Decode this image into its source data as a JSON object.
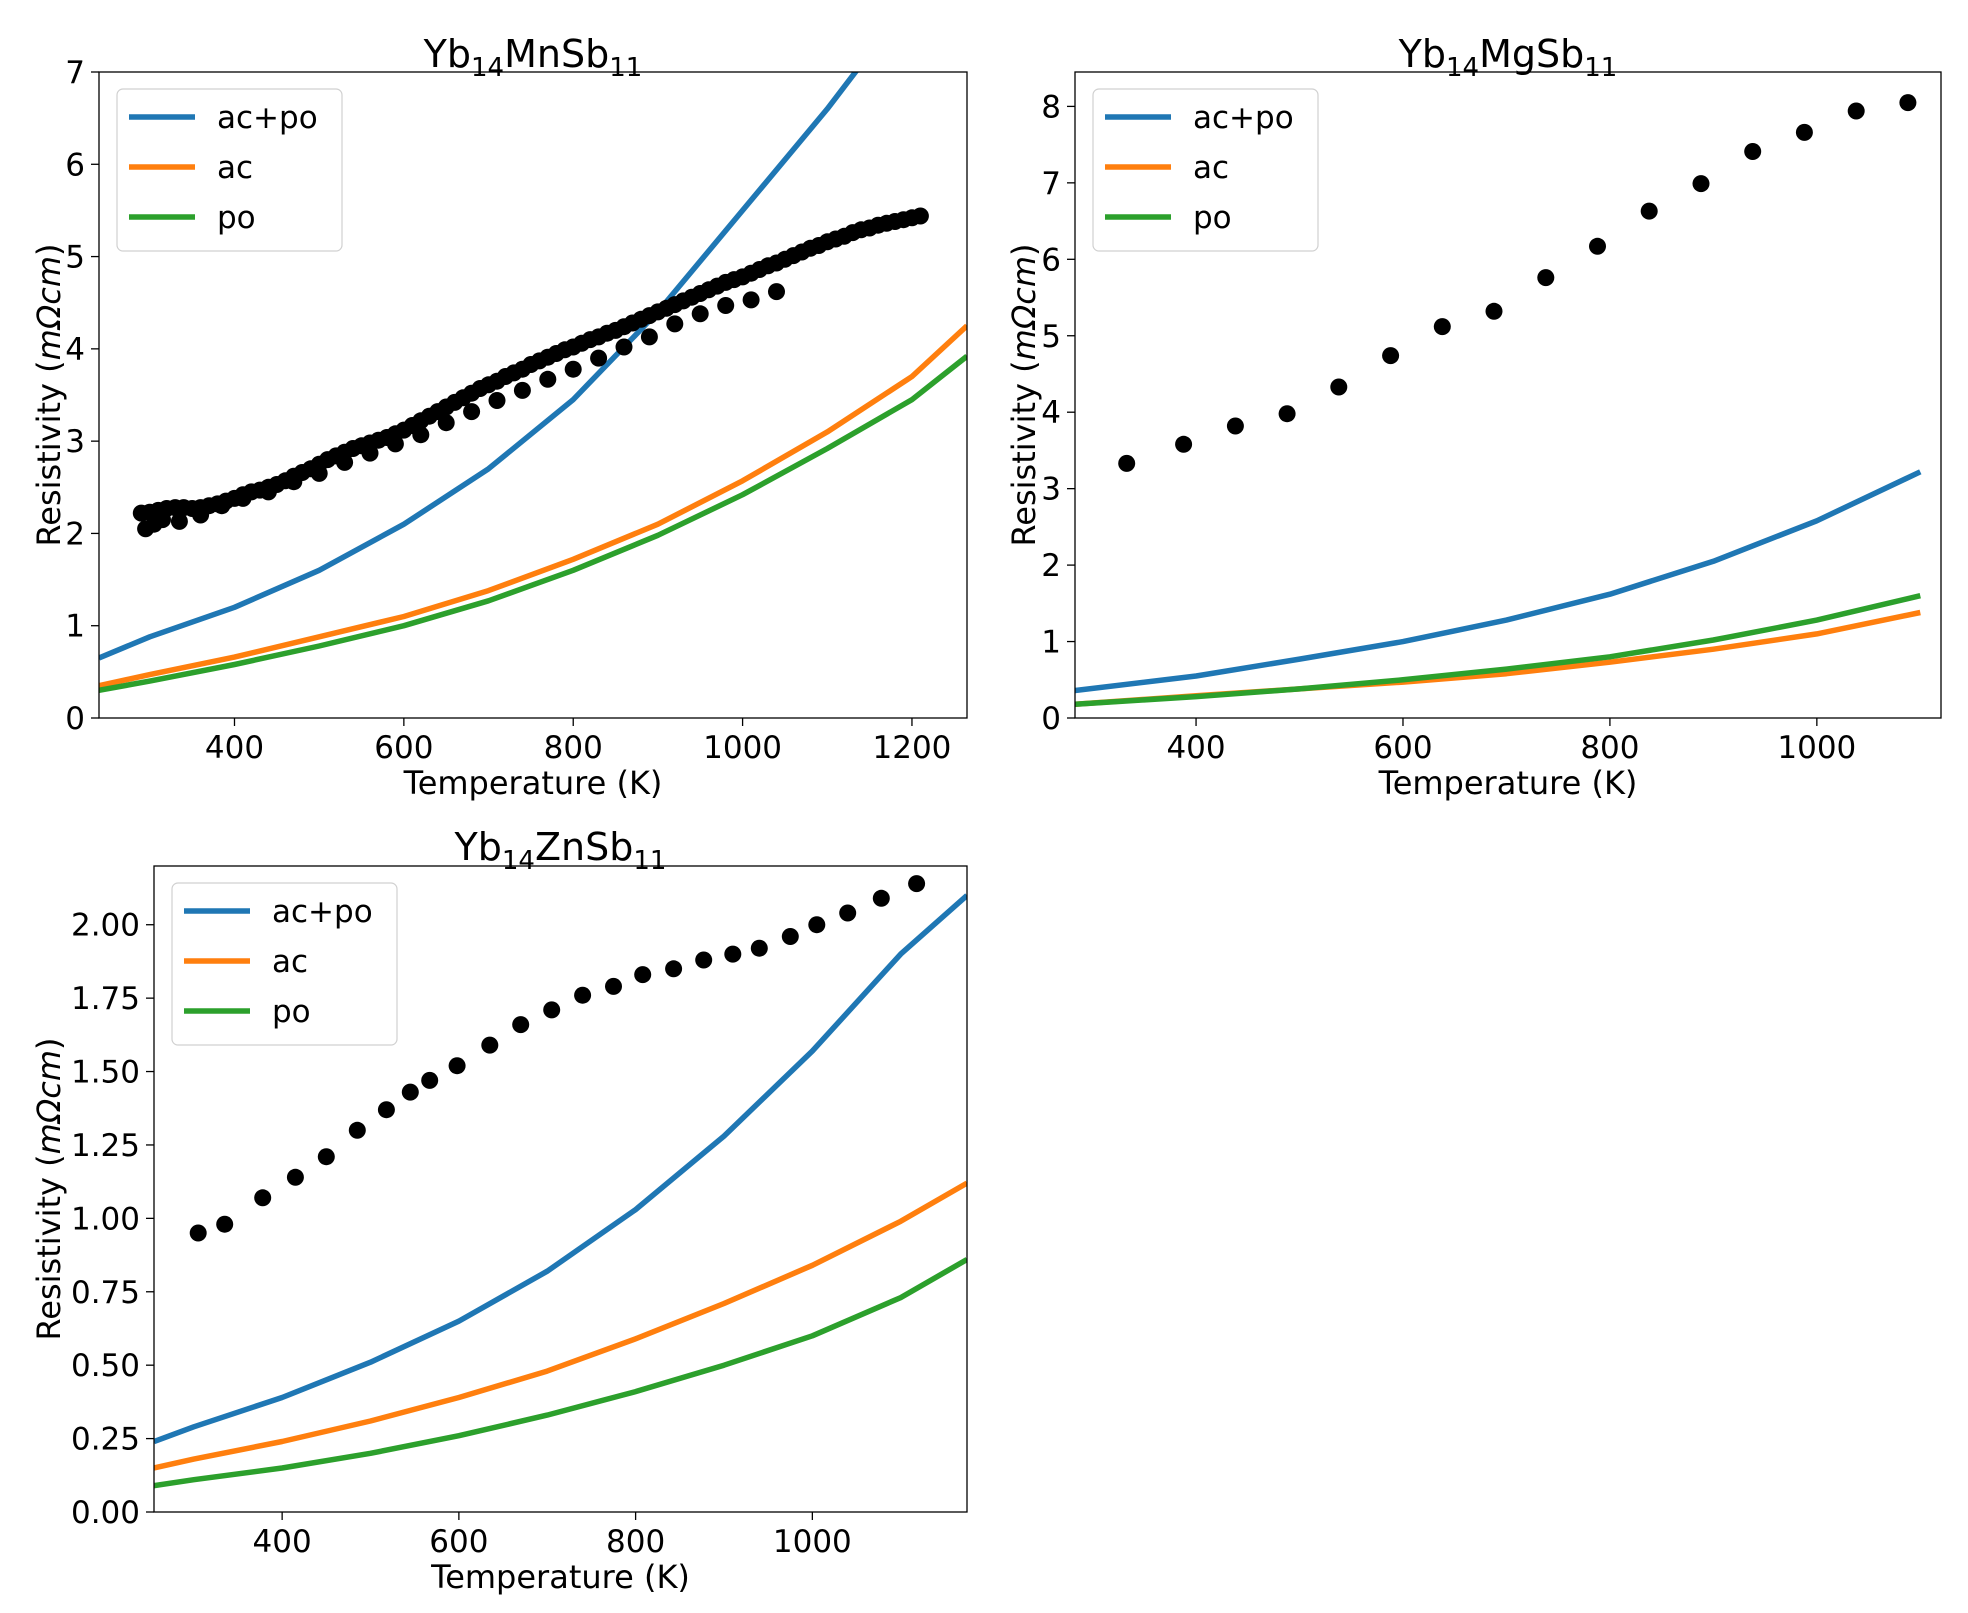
{
  "chart_data": [
    {
      "type": "line",
      "title_main": "Yb",
      "title_sub1": "14",
      "title_mid": "MnSb",
      "title_sub2": "11",
      "xlabel": "Temperature (K)",
      "ylabel_pre": "Resistivity (",
      "ylabel_unit": "mΩcm",
      "ylabel_post": ")",
      "xlim": [
        240,
        1265
      ],
      "ylim": [
        0,
        7
      ],
      "xticks": [
        400,
        600,
        800,
        1000,
        1200
      ],
      "yticks": [
        0,
        1,
        2,
        3,
        4,
        5,
        6,
        7
      ],
      "ytick_labels": [
        "0",
        "1",
        "2",
        "3",
        "4",
        "5",
        "6",
        "7"
      ],
      "legend_position": "top-left",
      "grid": false,
      "series": [
        {
          "name": "ac+po",
          "color": "#1f77b4",
          "x": [
            240,
            300,
            400,
            500,
            600,
            700,
            800,
            900,
            1000,
            1100,
            1150
          ],
          "y": [
            0.65,
            0.88,
            1.2,
            1.6,
            2.1,
            2.7,
            3.45,
            4.4,
            5.5,
            6.6,
            7.2
          ]
        },
        {
          "name": "ac",
          "color": "#ff7f0e",
          "x": [
            240,
            300,
            400,
            500,
            600,
            700,
            800,
            900,
            1000,
            1100,
            1200,
            1265
          ],
          "y": [
            0.35,
            0.47,
            0.66,
            0.88,
            1.1,
            1.38,
            1.72,
            2.1,
            2.57,
            3.1,
            3.7,
            4.25
          ]
        },
        {
          "name": "po",
          "color": "#2ca02c",
          "x": [
            240,
            300,
            400,
            500,
            600,
            700,
            800,
            900,
            1000,
            1100,
            1200,
            1265
          ],
          "y": [
            0.3,
            0.4,
            0.58,
            0.78,
            1.0,
            1.27,
            1.6,
            1.98,
            2.42,
            2.92,
            3.45,
            3.92
          ]
        },
        {
          "name": "",
          "type": "scatter",
          "color": "#000000",
          "x": [
            290,
            300,
            310,
            320,
            330,
            340,
            350,
            360,
            370,
            380,
            390,
            400,
            410,
            420,
            430,
            440,
            450,
            460,
            470,
            480,
            490,
            500,
            510,
            520,
            530,
            540,
            550,
            560,
            570,
            580,
            590,
            600,
            610,
            620,
            630,
            640,
            650,
            660,
            670,
            680,
            690,
            700,
            710,
            720,
            730,
            740,
            750,
            760,
            770,
            780,
            790,
            800,
            810,
            820,
            830,
            840,
            850,
            860,
            870,
            880,
            890,
            900,
            910,
            920,
            930,
            940,
            950,
            960,
            970,
            980,
            990,
            1000,
            1010,
            1020,
            1030,
            1040,
            1050,
            1060,
            1070,
            1080,
            1090,
            1100,
            1110,
            1120,
            1130,
            1140,
            1150,
            1160,
            1170,
            1180,
            1190,
            1200,
            1210,
            295,
            305,
            315,
            335,
            360,
            385,
            410,
            440,
            470,
            500,
            530,
            560,
            590,
            620,
            650,
            680,
            710,
            740,
            770,
            800,
            830,
            860,
            890,
            920,
            950,
            980,
            1010,
            1040
          ],
          "y": [
            2.22,
            2.23,
            2.25,
            2.27,
            2.28,
            2.28,
            2.27,
            2.28,
            2.3,
            2.32,
            2.35,
            2.38,
            2.42,
            2.45,
            2.47,
            2.5,
            2.53,
            2.57,
            2.62,
            2.66,
            2.7,
            2.75,
            2.8,
            2.84,
            2.88,
            2.92,
            2.95,
            2.98,
            3.01,
            3.04,
            3.08,
            3.12,
            3.17,
            3.22,
            3.27,
            3.32,
            3.37,
            3.42,
            3.47,
            3.52,
            3.57,
            3.61,
            3.65,
            3.7,
            3.74,
            3.78,
            3.83,
            3.87,
            3.91,
            3.95,
            3.99,
            4.02,
            4.06,
            4.1,
            4.13,
            4.17,
            4.2,
            4.24,
            4.28,
            4.32,
            4.36,
            4.4,
            4.44,
            4.48,
            4.52,
            4.56,
            4.6,
            4.64,
            4.68,
            4.72,
            4.75,
            4.78,
            4.82,
            4.86,
            4.9,
            4.93,
            4.97,
            5.01,
            5.05,
            5.09,
            5.12,
            5.16,
            5.19,
            5.22,
            5.26,
            5.29,
            5.31,
            5.34,
            5.36,
            5.38,
            5.4,
            5.42,
            5.44,
            2.05,
            2.1,
            2.15,
            2.13,
            2.2,
            2.3,
            2.38,
            2.45,
            2.56,
            2.65,
            2.77,
            2.87,
            2.97,
            3.07,
            3.2,
            3.32,
            3.44,
            3.55,
            3.67,
            3.78,
            3.9,
            4.02,
            4.13,
            4.27,
            4.38,
            4.47,
            4.53,
            4.62
          ]
        }
      ]
    },
    {
      "type": "line",
      "title_main": "Yb",
      "title_sub1": "14",
      "title_mid": "MgSb",
      "title_sub2": "11",
      "xlabel": "Temperature (K)",
      "ylabel_pre": "Resistivity (",
      "ylabel_unit": "mΩcm",
      "ylabel_post": ")",
      "xlim": [
        283,
        1120
      ],
      "ylim": [
        0,
        8.45
      ],
      "xticks": [
        400,
        600,
        800,
        1000
      ],
      "yticks": [
        0,
        1,
        2,
        3,
        4,
        5,
        6,
        7,
        8
      ],
      "ytick_labels": [
        "0",
        "1",
        "2",
        "3",
        "4",
        "5",
        "6",
        "7",
        "8"
      ],
      "legend_position": "top-left",
      "grid": false,
      "series": [
        {
          "name": "ac+po",
          "color": "#1f77b4",
          "x": [
            283,
            400,
            500,
            600,
            700,
            800,
            900,
            1000,
            1100
          ],
          "y": [
            0.36,
            0.55,
            0.77,
            1.0,
            1.28,
            1.62,
            2.05,
            2.58,
            3.22
          ]
        },
        {
          "name": "ac",
          "color": "#ff7f0e",
          "x": [
            283,
            400,
            500,
            600,
            700,
            800,
            900,
            1000,
            1100
          ],
          "y": [
            0.18,
            0.29,
            0.38,
            0.47,
            0.58,
            0.73,
            0.9,
            1.1,
            1.38
          ]
        },
        {
          "name": "po",
          "color": "#2ca02c",
          "x": [
            283,
            400,
            500,
            600,
            700,
            800,
            900,
            1000,
            1100
          ],
          "y": [
            0.18,
            0.28,
            0.38,
            0.5,
            0.64,
            0.8,
            1.02,
            1.28,
            1.6
          ]
        },
        {
          "name": "",
          "type": "scatter",
          "color": "#000000",
          "x": [
            333,
            388,
            438,
            488,
            538,
            588,
            638,
            688,
            738,
            788,
            838,
            888,
            938,
            988,
            1038,
            1088
          ],
          "y": [
            3.33,
            3.58,
            3.82,
            3.98,
            4.33,
            4.74,
            5.12,
            5.32,
            5.76,
            6.17,
            6.63,
            6.99,
            7.41,
            7.66,
            7.94,
            8.05
          ]
        }
      ]
    },
    {
      "type": "line",
      "title_main": "Yb",
      "title_sub1": "14",
      "title_mid": "ZnSb",
      "title_sub2": "11",
      "xlabel": "Temperature (K)",
      "ylabel_pre": "Resistivity (",
      "ylabel_unit": "mΩcm",
      "ylabel_post": ")",
      "xlim": [
        255,
        1175
      ],
      "ylim": [
        0,
        2.2
      ],
      "xticks": [
        400,
        600,
        800,
        1000
      ],
      "yticks": [
        0,
        0.25,
        0.5,
        0.75,
        1.0,
        1.25,
        1.5,
        1.75,
        2.0
      ],
      "ytick_labels": [
        "0.00",
        "0.25",
        "0.50",
        "0.75",
        "1.00",
        "1.25",
        "1.50",
        "1.75",
        "2.00"
      ],
      "legend_position": "top-left",
      "grid": false,
      "series": [
        {
          "name": "ac+po",
          "color": "#1f77b4",
          "x": [
            255,
            300,
            400,
            500,
            600,
            700,
            800,
            900,
            1000,
            1100,
            1175
          ],
          "y": [
            0.24,
            0.29,
            0.39,
            0.51,
            0.65,
            0.82,
            1.03,
            1.28,
            1.57,
            1.9,
            2.1
          ]
        },
        {
          "name": "ac",
          "color": "#ff7f0e",
          "x": [
            255,
            300,
            400,
            500,
            600,
            700,
            800,
            900,
            1000,
            1100,
            1175
          ],
          "y": [
            0.15,
            0.18,
            0.24,
            0.31,
            0.39,
            0.48,
            0.59,
            0.71,
            0.84,
            0.99,
            1.12
          ]
        },
        {
          "name": "po",
          "color": "#2ca02c",
          "x": [
            255,
            300,
            400,
            500,
            600,
            700,
            800,
            900,
            1000,
            1100,
            1175
          ],
          "y": [
            0.09,
            0.11,
            0.15,
            0.2,
            0.26,
            0.33,
            0.41,
            0.5,
            0.6,
            0.73,
            0.86
          ]
        },
        {
          "name": "",
          "type": "scatter",
          "color": "#000000",
          "x": [
            305,
            335,
            378,
            415,
            450,
            485,
            518,
            545,
            567,
            598,
            635,
            670,
            705,
            740,
            775,
            808,
            843,
            877,
            910,
            940,
            975,
            1005,
            1040,
            1078,
            1118
          ],
          "y": [
            0.95,
            0.98,
            1.07,
            1.14,
            1.21,
            1.3,
            1.37,
            1.43,
            1.47,
            1.52,
            1.59,
            1.66,
            1.71,
            1.76,
            1.79,
            1.83,
            1.85,
            1.88,
            1.9,
            1.92,
            1.96,
            2.0,
            2.04,
            2.09,
            2.14
          ]
        }
      ]
    }
  ]
}
